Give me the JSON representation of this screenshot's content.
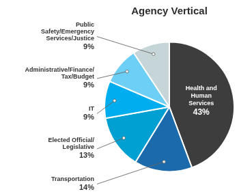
{
  "chart_data": {
    "type": "pie",
    "title": "Agency Vertical",
    "categories": [
      "Health and\nHuman\nServices",
      "Transportation",
      "Elected Official/\nLegislative",
      "IT",
      "Administrative/Finance/\nTax/Budget",
      "Public\nSafety/Emergency\nServices/Justice"
    ],
    "values": [
      43,
      14,
      13,
      9,
      9,
      9
    ],
    "value_labels": [
      "43%",
      "14%",
      "13%",
      "9%",
      "9%",
      "9%"
    ],
    "colors": [
      "#3d3d3d",
      "#1b6aab",
      "#00a0d2",
      "#00aeef",
      "#6ecff6",
      "#c5d5d8"
    ],
    "data_labels": true
  }
}
